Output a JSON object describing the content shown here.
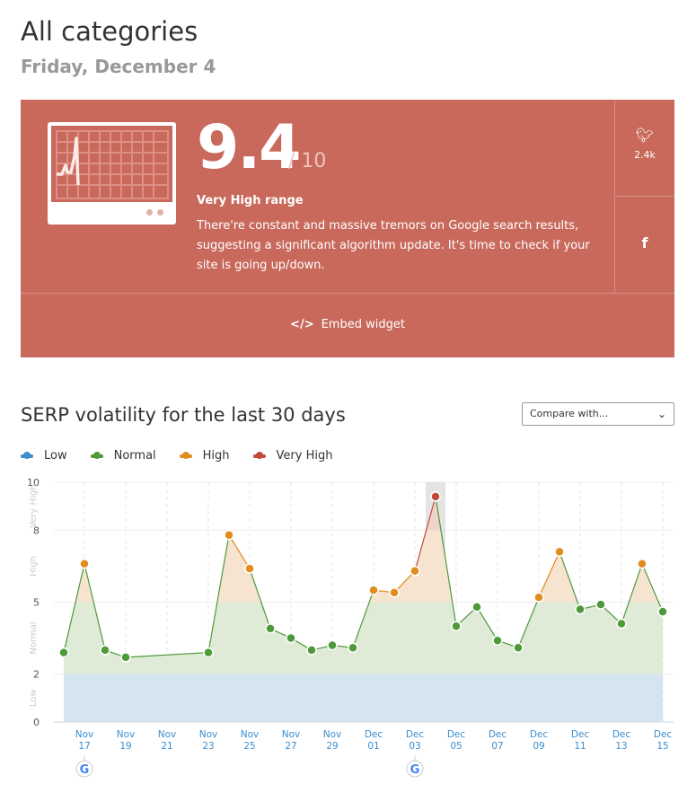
{
  "header": {
    "title": "All categories",
    "date": "Friday, December 4"
  },
  "score_panel": {
    "score": "9.4",
    "out_of": "/ 10",
    "range": "Very High range",
    "description": "There're constant and massive tremors on Google search results, suggesting a significant algorithm update. It's time to check if your site is going up/down.",
    "twitter_count": "2.4k",
    "embed_label": "Embed widget",
    "color": "#c8695c"
  },
  "section": {
    "title": "SERP volatility for the last 30 days",
    "compare_label": "Compare with..."
  },
  "legend": [
    {
      "label": "Low",
      "color": "#3a8fd0"
    },
    {
      "label": "Normal",
      "color": "#4e9a3a"
    },
    {
      "label": "High",
      "color": "#e08c1e"
    },
    {
      "label": "Very High",
      "color": "#c0493b"
    }
  ],
  "chart_data": {
    "type": "area",
    "ylim": [
      0,
      10
    ],
    "yticks": [
      0,
      2,
      5,
      8,
      10
    ],
    "bands": [
      {
        "label": "Low",
        "from": 0,
        "to": 2
      },
      {
        "label": "Normal",
        "from": 2,
        "to": 5
      },
      {
        "label": "High",
        "from": 5,
        "to": 8
      },
      {
        "label": "Very High",
        "from": 8,
        "to": 10
      }
    ],
    "xticks": [
      [
        "Nov",
        "17"
      ],
      [
        "Nov",
        "19"
      ],
      [
        "Nov",
        "21"
      ],
      [
        "Nov",
        "23"
      ],
      [
        "Nov",
        "25"
      ],
      [
        "Nov",
        "27"
      ],
      [
        "Nov",
        "29"
      ],
      [
        "Dec",
        "01"
      ],
      [
        "Dec",
        "03"
      ],
      [
        "Dec",
        "05"
      ],
      [
        "Dec",
        "07"
      ],
      [
        "Dec",
        "09"
      ],
      [
        "Dec",
        "11"
      ],
      [
        "Dec",
        "13"
      ],
      [
        "Dec",
        "15"
      ]
    ],
    "highlighted_day": "Dec 04",
    "google_updates": [
      "Nov 17",
      "Dec 03"
    ],
    "points": [
      [
        "Nov 16",
        2.9
      ],
      [
        "Nov 17",
        6.6
      ],
      [
        "Nov 18",
        3.0
      ],
      [
        "Nov 19",
        2.7
      ],
      [
        "Nov 23",
        2.9
      ],
      [
        "Nov 24",
        7.8
      ],
      [
        "Nov 25",
        6.4
      ],
      [
        "Nov 26",
        3.9
      ],
      [
        "Nov 27",
        3.5
      ],
      [
        "Nov 28",
        3.0
      ],
      [
        "Nov 29",
        3.2
      ],
      [
        "Nov 30",
        3.1
      ],
      [
        "Dec 01",
        5.5
      ],
      [
        "Dec 02",
        5.4
      ],
      [
        "Dec 03",
        6.3
      ],
      [
        "Dec 04",
        9.4
      ],
      [
        "Dec 05",
        4.0
      ],
      [
        "Dec 06",
        4.8
      ],
      [
        "Dec 07",
        3.4
      ],
      [
        "Dec 08",
        3.1
      ],
      [
        "Dec 09",
        5.2
      ],
      [
        "Dec 10",
        7.1
      ],
      [
        "Dec 11",
        4.7
      ],
      [
        "Dec 12",
        4.9
      ],
      [
        "Dec 13",
        4.1
      ],
      [
        "Dec 14",
        6.6
      ],
      [
        "Dec 15",
        4.6
      ]
    ]
  }
}
